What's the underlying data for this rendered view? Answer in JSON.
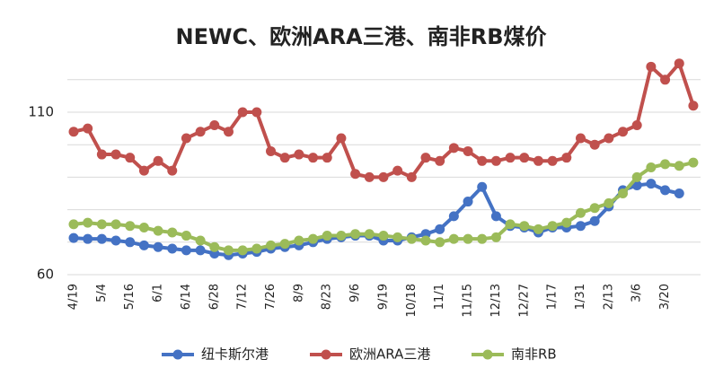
{
  "chart_data": {
    "type": "line",
    "title": "NEWC、欧洲ARA三港、南非RB煤价",
    "categories": [
      "4/19",
      null,
      "5/4",
      null,
      "5/16",
      null,
      "6/1",
      null,
      "6/14",
      null,
      "6/28",
      null,
      "7/12",
      null,
      "7/26",
      null,
      "8/9",
      null,
      "8/23",
      null,
      "9/6",
      null,
      "9/19",
      null,
      "10/18",
      null,
      "11/1",
      null,
      "11/15",
      null,
      "12/13",
      null,
      "12/27",
      null,
      "1/17",
      null,
      "1/31",
      null,
      "2/13",
      null,
      "3/6",
      null,
      "3/20",
      null,
      null
    ],
    "series": [
      {
        "name": "纽卡斯尔港",
        "color": "#4472c4",
        "values": [
          71.3,
          71,
          71,
          70.5,
          70,
          69,
          68.5,
          68,
          67.5,
          67.5,
          66.5,
          66,
          66.5,
          67,
          68,
          68.5,
          69,
          70,
          71,
          71.5,
          72,
          72,
          70.5,
          70.5,
          71.5,
          72.5,
          74,
          78,
          82.5,
          87,
          78,
          75,
          74.5,
          73,
          74.5,
          74.5,
          75,
          76.5,
          81,
          86,
          87.5,
          88,
          86,
          85,
          null
        ]
      },
      {
        "name": "欧洲ARA三港",
        "color": "#c0504d",
        "values": [
          104,
          105,
          97,
          97,
          96,
          92,
          95,
          92,
          102,
          104,
          106,
          104,
          110,
          110,
          98,
          96,
          97,
          96,
          96,
          102,
          91,
          90,
          90,
          92,
          90,
          96,
          95,
          99,
          98,
          95,
          95,
          96,
          96,
          95,
          95,
          96,
          102,
          100,
          102,
          104,
          106,
          124,
          120,
          125,
          112
        ]
      },
      {
        "name": "南非RB",
        "color": "#9bbb59",
        "values": [
          75.5,
          76,
          75.5,
          75.5,
          75,
          74.5,
          73.5,
          73,
          72,
          70.5,
          68.5,
          67.5,
          67.5,
          68,
          69,
          69.5,
          70.5,
          71,
          72,
          72,
          72.5,
          72.5,
          72,
          71.5,
          71,
          70.5,
          70,
          71,
          71,
          71,
          71.5,
          75.5,
          75,
          74,
          75,
          76,
          79,
          80.5,
          82,
          85,
          90,
          93,
          94,
          93.5,
          94.5
        ]
      }
    ],
    "ylim": [
      60,
      125
    ],
    "yticks": [
      60,
      110
    ],
    "ygrid": [
      60,
      70,
      80,
      90,
      100,
      110,
      120
    ],
    "legend": "bottom"
  }
}
